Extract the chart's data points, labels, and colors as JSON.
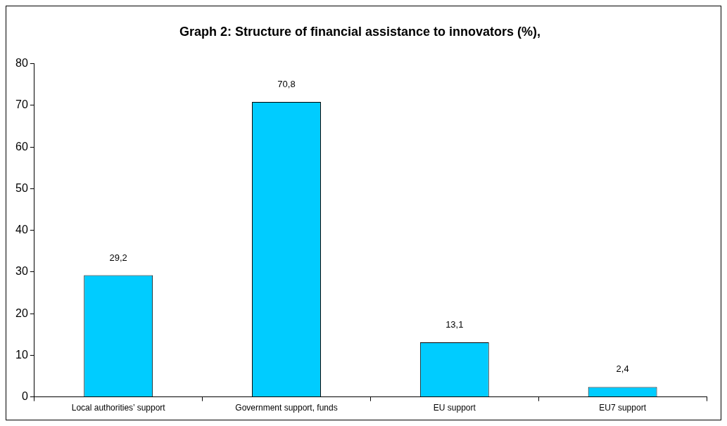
{
  "chart_data": {
    "type": "bar",
    "title": "Graph 2: Structure of financial assistance to innovators (%),",
    "categories": [
      "Local authorities’ support",
      "Government support, funds",
      "EU support",
      "EU7 support"
    ],
    "values": [
      29.2,
      70.8,
      13.1,
      2.4
    ],
    "value_labels": [
      "29,2",
      "70,8",
      "13,1",
      "2,4"
    ],
    "color": "#00ccff",
    "ylim": [
      0,
      80
    ],
    "yticks": [
      0,
      10,
      20,
      30,
      40,
      50,
      60,
      70,
      80
    ],
    "grid": false,
    "legend": false
  }
}
